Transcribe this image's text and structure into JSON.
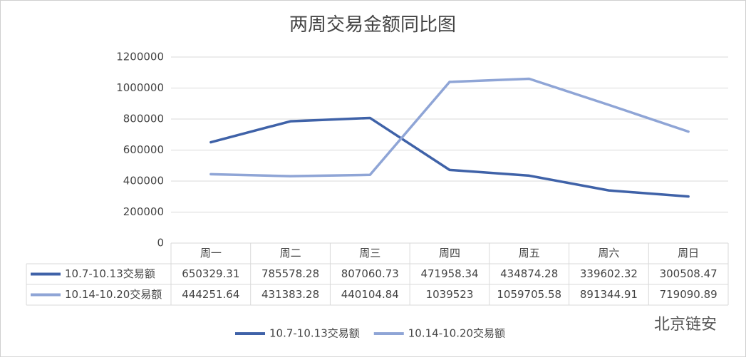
{
  "chart_data": {
    "type": "line",
    "title": "两周交易金额同比图",
    "categories": [
      "周一",
      "周二",
      "周三",
      "周四",
      "周五",
      "周六",
      "周日"
    ],
    "series": [
      {
        "name": "10.7-10.13交易额",
        "color": "#3f62a8",
        "values": [
          650329.31,
          785578.28,
          807060.73,
          471958.34,
          434874.28,
          339602.32,
          300508.47
        ]
      },
      {
        "name": "10.14-10.20交易额",
        "color": "#8fa5d6",
        "values": [
          444251.64,
          431383.28,
          440104.84,
          1039523,
          1059705.58,
          891344.91,
          719090.89
        ]
      }
    ],
    "ylim": [
      0,
      1200000
    ],
    "yticks": [
      0,
      200000,
      400000,
      600000,
      800000,
      1000000,
      1200000
    ],
    "grid": true,
    "data_table": true,
    "legend": "bottom"
  },
  "watermark": "北京链安"
}
